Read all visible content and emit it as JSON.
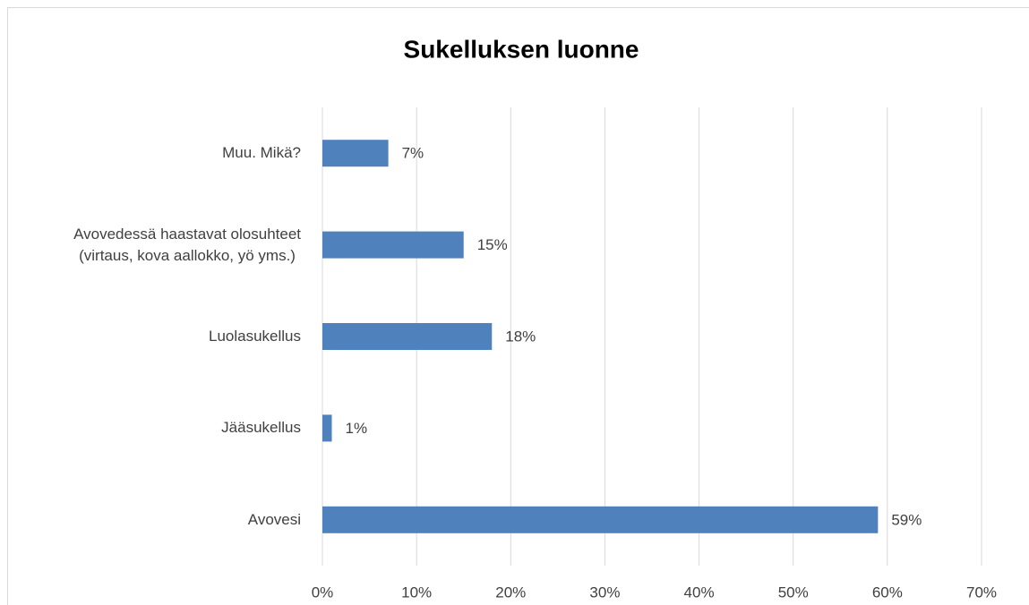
{
  "chart_data": {
    "type": "barh",
    "title": "Sukelluksen luonne",
    "categories": [
      "Muu. Mikä?",
      "Avovedessä haastavat olosuhteet\n(virtaus, kova aallokko, yö yms.)",
      "Luolasukellus",
      "Jääsukellus",
      "Avovesi"
    ],
    "values": [
      7,
      15,
      18,
      1,
      59
    ],
    "value_labels": [
      "7%",
      "15%",
      "18%",
      "1%",
      "59%"
    ],
    "color": "#4f81bd",
    "xlim": [
      0,
      70
    ],
    "xticks": [
      {
        "value": 0,
        "label": "0%"
      },
      {
        "value": 10,
        "label": "10%"
      },
      {
        "value": 20,
        "label": "20%"
      },
      {
        "value": 30,
        "label": "30%"
      },
      {
        "value": 40,
        "label": "40%"
      },
      {
        "value": 50,
        "label": "50%"
      },
      {
        "value": 60,
        "label": "60%"
      },
      {
        "value": 70,
        "label": "70%"
      }
    ],
    "grid": true
  }
}
